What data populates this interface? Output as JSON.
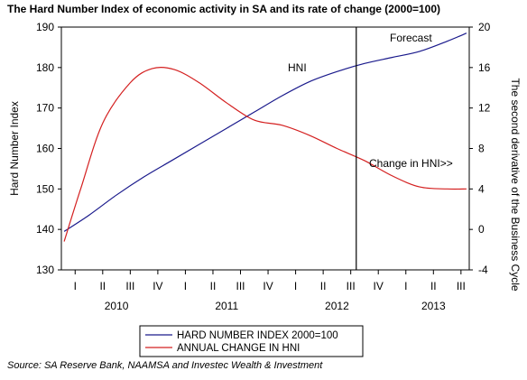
{
  "title": "The Hard Number Index of economic activity in SA and its rate of change (2000=100)",
  "source": "Source: SA Reserve Bank, NAAMSA and Investec Wealth & Investment",
  "chart_data": {
    "type": "line",
    "ylabel": "Hard Number Index",
    "y2label": "The second derivative of the Business Cycle",
    "ylim": [
      130,
      190
    ],
    "y_ticks": [
      130,
      140,
      150,
      160,
      170,
      180,
      190
    ],
    "y2lim": [
      -4,
      20
    ],
    "y2_ticks": [
      -4,
      0,
      4,
      8,
      12,
      16,
      20
    ],
    "quarters": [
      "I",
      "II",
      "III",
      "IV",
      "I",
      "II",
      "III",
      "IV",
      "I",
      "II",
      "III",
      "IV",
      "I",
      "II",
      "III"
    ],
    "years": [
      "2010",
      "2011",
      "2012",
      "2013"
    ],
    "x_range": [
      0.5,
      15.3
    ],
    "grid": false,
    "legend_position": "bottom-center",
    "annotations": {
      "hni": "HNI",
      "change": "Change in HNI>>",
      "forecast": "Forecast"
    },
    "forecast_start_x": 11.2,
    "series": [
      {
        "name": "HARD NUMBER INDEX 2000=100",
        "axis": "left",
        "color": "#1a1a8c",
        "points": [
          [
            0.6,
            139.5
          ],
          [
            1.5,
            143.5
          ],
          [
            2.5,
            148.5
          ],
          [
            3.5,
            153
          ],
          [
            4.5,
            157
          ],
          [
            5.5,
            161
          ],
          [
            6.5,
            165
          ],
          [
            7.5,
            169
          ],
          [
            8.5,
            173
          ],
          [
            9.5,
            176.5
          ],
          [
            10.5,
            179
          ],
          [
            11.5,
            181
          ],
          [
            12.5,
            182.5
          ],
          [
            13.5,
            184
          ],
          [
            14.5,
            186.5
          ],
          [
            15.2,
            188.5
          ]
        ]
      },
      {
        "name": "ANNUAL CHANGE IN HNI",
        "axis": "right",
        "color": "#d42020",
        "points": [
          [
            0.6,
            -1.2
          ],
          [
            1.2,
            4
          ],
          [
            2.0,
            10.5
          ],
          [
            3.0,
            14.5
          ],
          [
            3.8,
            15.9
          ],
          [
            4.6,
            15.8
          ],
          [
            5.5,
            14.5
          ],
          [
            6.5,
            12.5
          ],
          [
            7.5,
            10.8
          ],
          [
            8.5,
            10.3
          ],
          [
            9.5,
            9.3
          ],
          [
            10.5,
            8
          ],
          [
            11.5,
            6.8
          ],
          [
            12.5,
            5.3
          ],
          [
            13.5,
            4.2
          ],
          [
            14.5,
            4
          ],
          [
            15.2,
            4
          ]
        ]
      }
    ]
  }
}
